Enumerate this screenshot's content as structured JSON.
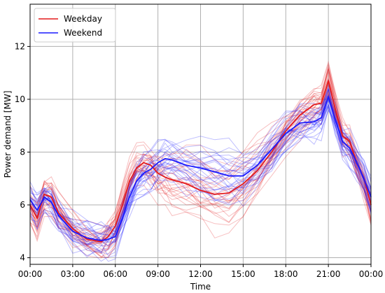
{
  "chart_data": {
    "type": "line",
    "title": "",
    "xlabel": "Time",
    "ylabel": "Power demand [MW]",
    "xlim": [
      0,
      24
    ],
    "ylim": [
      3.75,
      13.6
    ],
    "grid": true,
    "legend_position": "top-left",
    "x_ticks": [
      {
        "value": 0,
        "label": "00:00"
      },
      {
        "value": 3,
        "label": "03:00"
      },
      {
        "value": 6,
        "label": "06:00"
      },
      {
        "value": 9,
        "label": "09:00"
      },
      {
        "value": 12,
        "label": "12:00"
      },
      {
        "value": 15,
        "label": "15:00"
      },
      {
        "value": 18,
        "label": "18:00"
      },
      {
        "value": 21,
        "label": "21:00"
      },
      {
        "value": 24,
        "label": "00:00"
      }
    ],
    "y_ticks": [
      {
        "value": 4,
        "label": "4"
      },
      {
        "value": 6,
        "label": "6"
      },
      {
        "value": 8,
        "label": "8"
      },
      {
        "value": 10,
        "label": "10"
      },
      {
        "value": 12,
        "label": "12"
      }
    ],
    "x": [
      0,
      0.5,
      1,
      1.5,
      2,
      3,
      4,
      5,
      5.5,
      6,
      6.5,
      7,
      7.5,
      8,
      8.5,
      9,
      9.5,
      10,
      11,
      12,
      13,
      14,
      15,
      16,
      17,
      18,
      19,
      20,
      20.5,
      21,
      21.5,
      22,
      22.5,
      23,
      23.5,
      24
    ],
    "series": [
      {
        "name": "Weekday",
        "color": "#e41a1c",
        "values": [
          6.0,
          5.5,
          6.4,
          6.3,
          5.7,
          5.1,
          4.7,
          4.6,
          4.8,
          5.2,
          6.0,
          6.9,
          7.4,
          7.6,
          7.5,
          7.2,
          7.05,
          6.95,
          6.8,
          6.55,
          6.4,
          6.45,
          6.8,
          7.3,
          8.0,
          8.8,
          9.4,
          9.8,
          9.85,
          10.7,
          9.6,
          8.6,
          8.4,
          7.6,
          7.0,
          6.0
        ]
      },
      {
        "name": "Weekend",
        "color": "#1a1aff",
        "values": [
          6.2,
          5.8,
          6.3,
          6.1,
          5.6,
          5.0,
          4.75,
          4.65,
          4.7,
          4.8,
          5.5,
          6.3,
          6.9,
          7.2,
          7.35,
          7.6,
          7.75,
          7.7,
          7.5,
          7.4,
          7.25,
          7.1,
          7.1,
          7.5,
          8.1,
          8.7,
          9.1,
          9.15,
          9.3,
          10.1,
          9.2,
          8.4,
          8.15,
          7.6,
          7.0,
          6.3
        ]
      }
    ]
  }
}
